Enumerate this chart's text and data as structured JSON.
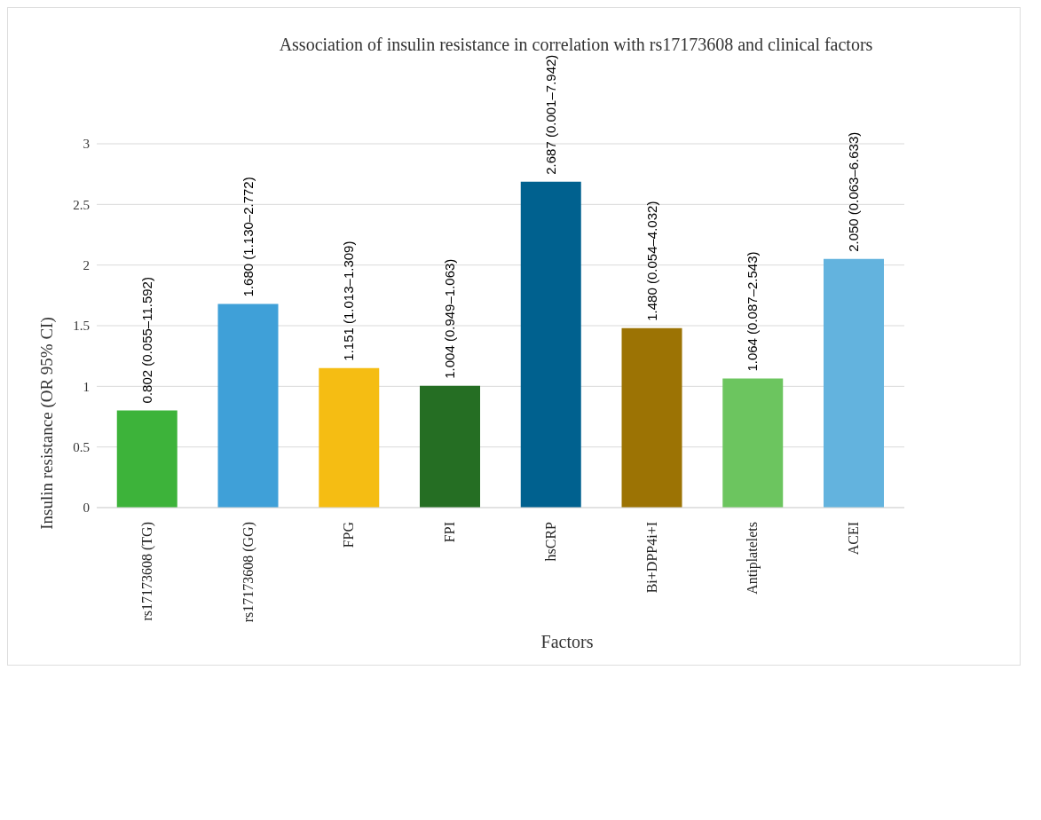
{
  "chart_data": {
    "type": "bar",
    "title": "Association of insulin resistance in correlation with rs17173608 and clinical factors",
    "xlabel": "Factors",
    "ylabel": "Insulin resistance  (OR 95% CI)",
    "categories": [
      "rs17173608 (TG)",
      "rs17173608 (GG)",
      "FPG",
      "FPI",
      "hsCRP",
      "Bi+DPP4i+I",
      "Antiplatelets",
      "ACEI"
    ],
    "values": [
      0.802,
      1.68,
      1.151,
      1.004,
      2.687,
      1.48,
      1.064,
      2.05
    ],
    "colors": [
      "#3db33a",
      "#3fa0d8",
      "#f5bd13",
      "#256e23",
      "#00618f",
      "#9c7304",
      "#6cc55f",
      "#63b3de"
    ],
    "value_labels": [
      "0.802 (0.055–11.592)",
      "1.680 (1.130–2.772)",
      "1.151 (1.013–1.309)",
      "1.004 (0.949–1.063)",
      "2.687 (0.001–7.942)",
      "1.480 (0.054–4.032)",
      "1.064 (0.087–2.543)",
      "2.050 (0.063–6.633)"
    ],
    "ylim": [
      0,
      3
    ],
    "yticks": [
      0,
      0.5,
      1,
      1.5,
      2,
      2.5,
      3
    ],
    "grid": "y",
    "legend": false
  }
}
